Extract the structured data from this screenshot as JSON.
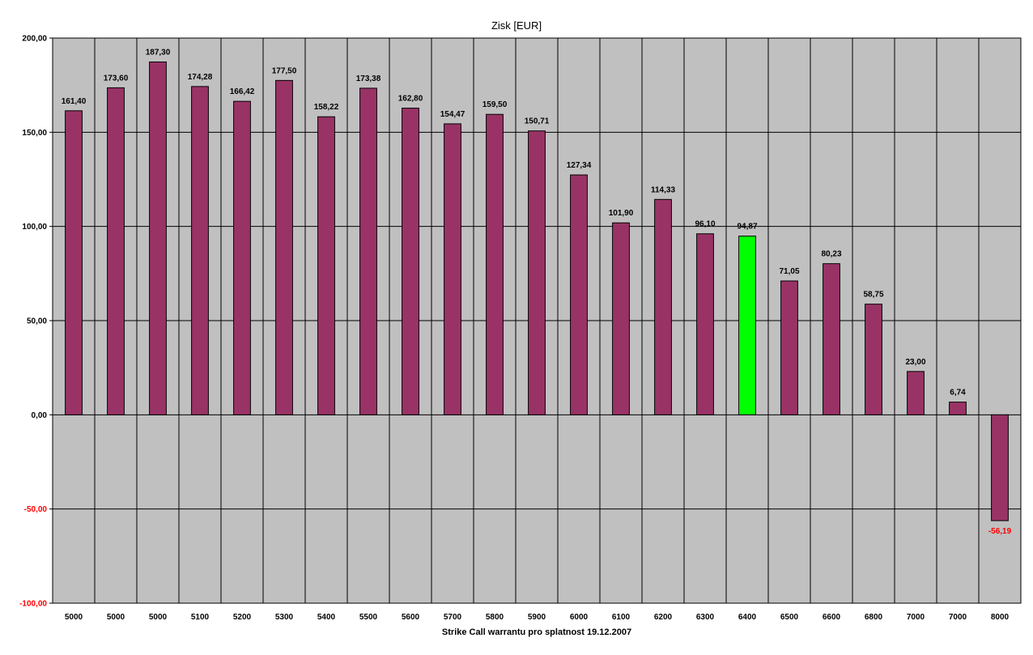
{
  "chart_data": {
    "type": "bar",
    "title": "Zisk [EUR]",
    "xlabel": "Strike Call warrantu pro splatnost 19.12.2007",
    "ylabel": "",
    "ylim": [
      -100,
      200
    ],
    "yticks": [
      200,
      150,
      100,
      50,
      0,
      -50,
      -100
    ],
    "ytick_labels": [
      "200,00",
      "150,00",
      "100,00",
      "50,00",
      "0,00",
      "-50,00",
      "-100,00"
    ],
    "categories": [
      "5000",
      "5000",
      "5000",
      "5100",
      "5200",
      "5300",
      "5400",
      "5500",
      "5600",
      "5700",
      "5800",
      "5900",
      "6000",
      "6100",
      "6200",
      "6300",
      "6400",
      "6500",
      "6600",
      "6800",
      "7000",
      "7000",
      "8000"
    ],
    "values": [
      161.4,
      173.6,
      187.3,
      174.28,
      166.42,
      177.5,
      158.22,
      173.38,
      162.8,
      154.47,
      159.5,
      150.71,
      127.34,
      101.9,
      114.33,
      96.1,
      94.87,
      71.05,
      80.23,
      58.75,
      23.0,
      6.74,
      -56.19
    ],
    "data_labels": [
      "161,40",
      "173,60",
      "187,30",
      "174,28",
      "166,42",
      "177,50",
      "158,22",
      "173,38",
      "162,80",
      "154,47",
      "159,50",
      "150,71",
      "127,34",
      "101,90",
      "114,33",
      "96,10",
      "94,87",
      "71,05",
      "80,23",
      "58,75",
      "23,00",
      "6,74",
      "-56,19"
    ],
    "highlight_index": 16,
    "grid": true,
    "legend": "none",
    "colors": {
      "bar": "#993366",
      "highlight": "#00ff00",
      "plot_background": "#c0c0c0",
      "negative_label": "#ff0000",
      "label": "#000000"
    }
  }
}
